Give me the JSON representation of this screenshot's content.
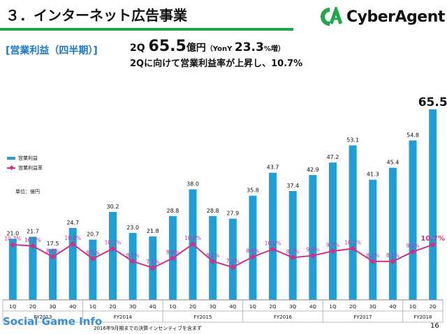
{
  "header": {
    "title": "３．インターネット広告事業",
    "logo_text": "CyberAgent"
  },
  "section_label": "[営業利益（四半期）]",
  "headline": {
    "quarter": "2Q ",
    "value": "65.5",
    "unit": "億円",
    "yoy_label": "（YonY ",
    "yoy_value": "23.3",
    "yoy_suffix": "%増）",
    "line2": "2Qに向けて営業利益率が上昇し、10.7%"
  },
  "legend": {
    "bar_label": "営業利益",
    "line_label": "営業利益率"
  },
  "unit_label": "単位：億円",
  "footer": {
    "brand": "Social Game Info",
    "note": "2016年9月期までの決算インセンティブを含まず",
    "page_number": "16"
  },
  "colors": {
    "bar": "#1f9fd6",
    "line": "#d0308a",
    "accent": "#22a64a",
    "margin_text": "#d0308a"
  },
  "chart_data": {
    "type": "bar",
    "categories": [
      "1Q",
      "2Q",
      "3Q",
      "4Q",
      "1Q",
      "2Q",
      "3Q",
      "4Q",
      "1Q",
      "2Q",
      "3Q",
      "4Q",
      "1Q",
      "2Q",
      "3Q",
      "4Q",
      "1Q",
      "2Q",
      "3Q",
      "4Q",
      "1Q",
      "2Q"
    ],
    "groups": [
      {
        "label": "FY2013",
        "count": 4
      },
      {
        "label": "FY2014",
        "count": 4
      },
      {
        "label": "FY2015",
        "count": 4
      },
      {
        "label": "FY2016",
        "count": 4
      },
      {
        "label": "FY2017",
        "count": 4
      },
      {
        "label": "FY2018",
        "count": 2
      }
    ],
    "series": [
      {
        "name": "営業利益",
        "type": "bar",
        "values": [
          21.0,
          21.7,
          17.5,
          24.7,
          20.7,
          30.2,
          23.0,
          21.8,
          28.8,
          38.0,
          28.8,
          27.9,
          35.8,
          43.7,
          37.4,
          42.9,
          47.2,
          53.1,
          41.3,
          45.4,
          54.8,
          65.5
        ],
        "labels": [
          "21.0",
          "21.7",
          "17.5",
          "24.7",
          "20.7",
          "30.2",
          "23.0",
          "21.8",
          "28.8",
          "38.0",
          "28.8",
          "27.9",
          "35.8",
          "43.7",
          "37.4",
          "42.9",
          "47.2",
          "53.1",
          "41.3",
          "45.4",
          "54.8",
          "65.5"
        ]
      },
      {
        "name": "営業利益率",
        "type": "line",
        "values": [
          10.7,
          10.5,
          8.8,
          10.8,
          8.5,
          10.1,
          8.1,
          7.1,
          8.6,
          10.8,
          8.1,
          7.2,
          8.8,
          10.0,
          8.7,
          9.0,
          9.7,
          10.1,
          8.1,
          8.1,
          9.6,
          10.7
        ],
        "labels": [
          "10.7%",
          "10.5%",
          "8.8%",
          "10.8%",
          "8.5%",
          "10.1%",
          "8.1%",
          "7.1%",
          "8.6%",
          "10.8%",
          "8.1%",
          "7.2%",
          "8.8%",
          "10.0%",
          "8.7%",
          "9.0%",
          "9.7%",
          "10.1%",
          "8.1%",
          "8.1%",
          "9.6%",
          "10.7%"
        ]
      }
    ],
    "ylim": [
      0,
      70
    ],
    "grid": false,
    "legend": "left"
  }
}
